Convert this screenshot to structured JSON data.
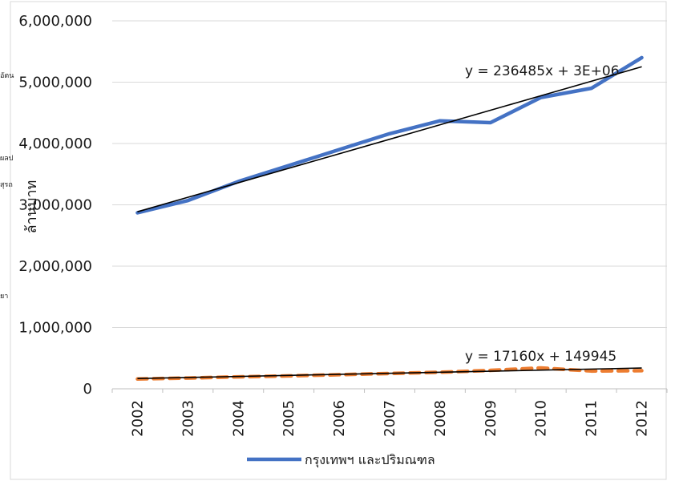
{
  "chart_data": {
    "type": "line",
    "title": "",
    "xlabel": "",
    "ylabel": "ล้านบาท",
    "x": [
      "2002",
      "2003",
      "2004",
      "2005",
      "2006",
      "2007",
      "2008",
      "2009",
      "2010",
      "2011",
      "2012"
    ],
    "ylim": [
      0,
      6000000
    ],
    "yticks": [
      0,
      1000000,
      2000000,
      3000000,
      4000000,
      5000000,
      6000000
    ],
    "ytick_labels": [
      "0",
      "1,000,000",
      "2,000,000",
      "3,000,000",
      "4,000,000",
      "5,000,000",
      "6,000,000"
    ],
    "grid": true,
    "legend_position": "bottom",
    "series": [
      {
        "name": "กรุงเทพฯ และปริมณฑล",
        "color": "#4472C4",
        "style": "solid",
        "values": [
          2870000,
          3070000,
          3380000,
          3640000,
          3900000,
          4160000,
          4370000,
          4340000,
          4750000,
          4900000,
          5400000
        ]
      },
      {
        "name": "",
        "color": "#ED7D31",
        "style": "dashed",
        "values": [
          160000,
          175000,
          195000,
          210000,
          230000,
          250000,
          270000,
          300000,
          340000,
          290000,
          295000
        ]
      }
    ],
    "trendlines": [
      {
        "series": 0,
        "slope": 236485,
        "intercept": 2650000,
        "label": "y = 236485x + 3E+06",
        "color": "#000000"
      },
      {
        "series": 1,
        "slope": 17160,
        "intercept": 149945,
        "label": "y = 17160x + 149945",
        "color": "#000000"
      }
    ]
  },
  "title_text": "",
  "side_fragments": [
    "อัตน",
    "ผลป",
    "สุรถ",
    "ยา"
  ]
}
